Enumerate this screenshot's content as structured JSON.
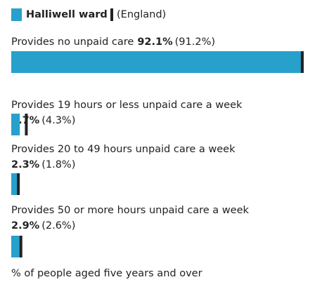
{
  "chart_data": {
    "type": "bar",
    "orientation": "horizontal",
    "categories": [
      "Provides no unpaid care",
      "Provides 19 hours or less unpaid care a week",
      "Provides 20 to 49 hours unpaid care a week",
      "Provides 50 or more hours unpaid care a week"
    ],
    "series": [
      {
        "name": "Halliwell ward",
        "color": "#27a0cc",
        "values": [
          92.1,
          2.7,
          2.3,
          2.9
        ],
        "value_labels": [
          "92.1%",
          "2.7%",
          "2.3%",
          "2.9%"
        ]
      },
      {
        "name": "(England)",
        "color": "#222222",
        "values": [
          91.2,
          4.3,
          1.8,
          2.6
        ],
        "value_labels": [
          "(91.2%)",
          "(4.3%)",
          "(1.8%)",
          "(2.6%)"
        ]
      }
    ],
    "xlim": [
      0,
      93
    ],
    "x_label": "% of people aged five years and over"
  }
}
